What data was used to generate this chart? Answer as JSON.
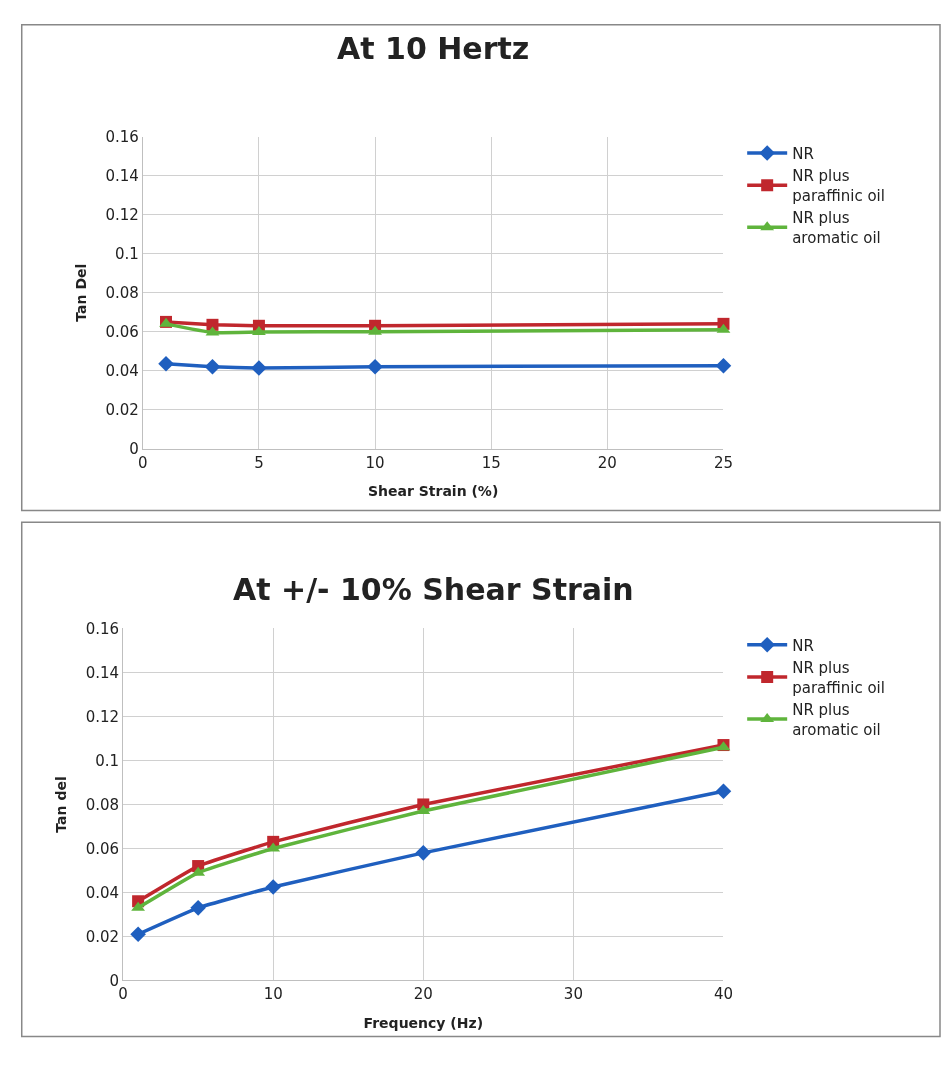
{
  "chart_data": [
    {
      "type": "line",
      "title": "At 10 Hertz",
      "xlabel": "Shear Strain (%)",
      "ylabel": "Tan Del",
      "xlim": [
        0,
        25
      ],
      "xticks": [
        0,
        5,
        10,
        15,
        20,
        25
      ],
      "ylim": [
        0,
        0.16
      ],
      "yticks": [
        0,
        0.02,
        0.04,
        0.06,
        0.08,
        0.1,
        0.12,
        0.14,
        0.16
      ],
      "grid": true,
      "legend": "right",
      "x": [
        1,
        3,
        5,
        10,
        25
      ],
      "series": [
        {
          "name": "NR",
          "color": "#1f5fbf",
          "marker": "diamond",
          "values": [
            0.0435,
            0.042,
            0.0413,
            0.042,
            0.0425
          ]
        },
        {
          "name": "NR plus paraffinic oil",
          "color": "#c0272d",
          "marker": "square",
          "values": [
            0.065,
            0.0635,
            0.063,
            0.063,
            0.064
          ]
        },
        {
          "name": "NR plus aromatic oil",
          "color": "#5fb43c",
          "marker": "triangle",
          "values": [
            0.064,
            0.0595,
            0.0598,
            0.06,
            0.061
          ]
        }
      ]
    },
    {
      "type": "line",
      "title": "At +/- 10% Shear Strain",
      "xlabel": "Frequency (Hz)",
      "ylabel": "Tan del",
      "xlim": [
        0,
        40
      ],
      "xticks": [
        0,
        10,
        20,
        30,
        40
      ],
      "ylim": [
        0,
        0.16
      ],
      "yticks": [
        0,
        0.02,
        0.04,
        0.06,
        0.08,
        0.1,
        0.12,
        0.14,
        0.16
      ],
      "grid": true,
      "legend": "right",
      "x": [
        1,
        5,
        10,
        20,
        40
      ],
      "series": [
        {
          "name": "NR",
          "color": "#1f5fbf",
          "marker": "diamond",
          "values": [
            0.021,
            0.033,
            0.0425,
            0.058,
            0.086
          ]
        },
        {
          "name": "NR plus paraffinic oil",
          "color": "#c0272d",
          "marker": "square",
          "values": [
            0.036,
            0.052,
            0.063,
            0.08,
            0.107
          ]
        },
        {
          "name": "NR plus aromatic oil",
          "color": "#5fb43c",
          "marker": "triangle",
          "values": [
            0.033,
            0.049,
            0.06,
            0.077,
            0.106
          ]
        }
      ]
    }
  ]
}
